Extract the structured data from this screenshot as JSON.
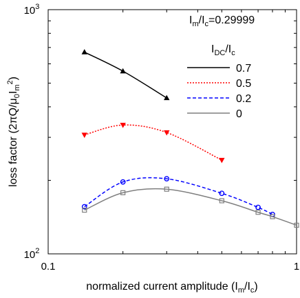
{
  "chart_data": {
    "type": "line",
    "xlabel": "normalized current amplitude (I_m/I_c)",
    "ylabel": "loss factor (2πQ/μ_0 I_m^2)",
    "xscale": "log",
    "yscale": "log",
    "xlim": [
      0.1,
      1
    ],
    "ylim": [
      100,
      1000
    ],
    "x_ticks": [
      {
        "value": 0.1,
        "label": "0.1"
      },
      {
        "value": 1,
        "label": "1"
      }
    ],
    "y_ticks": [
      {
        "value": 100,
        "label": "10",
        "exp": "2"
      },
      {
        "value": 1000,
        "label": "10",
        "exp": "3"
      }
    ],
    "annotation": {
      "main": "I",
      "sub1": "m",
      "mid": "/I",
      "sub2": "c",
      "tail": "=0.29999"
    },
    "legend": {
      "title": {
        "main": "I",
        "sub": "DC",
        "tail": "/I",
        "sub2": "c"
      },
      "placement": "top-right"
    },
    "series": [
      {
        "name": "0.7",
        "color": "#000000",
        "dash": "solid",
        "marker": "triangle-up",
        "x": [
          0.14,
          0.2,
          0.3
        ],
        "y": [
          670,
          560,
          435
        ]
      },
      {
        "name": "0.5",
        "color": "#ff0000",
        "dash": "dotted",
        "marker": "triangle-down",
        "x": [
          0.14,
          0.2,
          0.3,
          0.5
        ],
        "y": [
          307,
          337,
          314,
          242
        ]
      },
      {
        "name": "0.2",
        "color": "#0000ff",
        "dash": "dashed",
        "marker": "circle",
        "x": [
          0.14,
          0.2,
          0.3,
          0.5,
          0.7,
          0.8
        ],
        "y": [
          156,
          197,
          203,
          177,
          155,
          145
        ]
      },
      {
        "name": "0",
        "color": "#7f7f7f",
        "dash": "solid",
        "marker": "square",
        "x": [
          0.14,
          0.2,
          0.3,
          0.5,
          0.7,
          0.8,
          1.0
        ],
        "y": [
          151,
          178,
          184,
          165,
          148,
          142,
          131
        ]
      }
    ]
  }
}
